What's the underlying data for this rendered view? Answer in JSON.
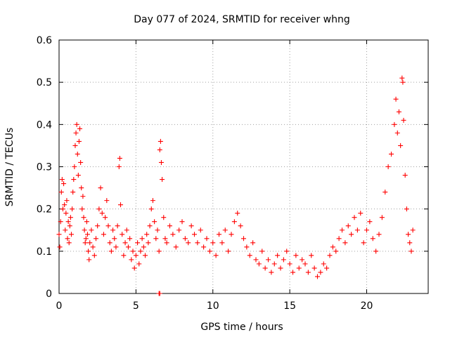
{
  "chart_data": {
    "type": "scatter",
    "title": "Day 077 of 2024, SRMTID for receiver whng",
    "xlabel": "GPS time / hours",
    "ylabel": "SRMTID / TECUs",
    "xlim": [
      0,
      24
    ],
    "ylim": [
      0,
      0.6
    ],
    "x_ticks": [
      0,
      5,
      10,
      15,
      20
    ],
    "y_ticks": [
      0,
      0.1,
      0.2,
      0.3,
      0.4,
      0.5,
      0.6
    ],
    "x_tick_labels": [
      "0",
      "5",
      "10",
      "15",
      "20"
    ],
    "y_tick_labels": [
      "0",
      "0.1",
      "0.2",
      "0.3",
      "0.4",
      "0.5",
      "0.6"
    ],
    "grid": true,
    "marker": "+",
    "series": [
      {
        "name": "SRMTID",
        "color": "#ff0000",
        "points": [
          [
            0.0,
            0.14
          ],
          [
            0.05,
            0.11
          ],
          [
            0.1,
            0.17
          ],
          [
            0.15,
            0.24
          ],
          [
            0.2,
            0.27
          ],
          [
            0.25,
            0.2
          ],
          [
            0.3,
            0.26
          ],
          [
            0.35,
            0.21
          ],
          [
            0.4,
            0.15
          ],
          [
            0.45,
            0.19
          ],
          [
            0.5,
            0.22
          ],
          [
            0.55,
            0.13
          ],
          [
            0.6,
            0.17
          ],
          [
            0.65,
            0.12
          ],
          [
            0.7,
            0.16
          ],
          [
            0.75,
            0.18
          ],
          [
            0.8,
            0.14
          ],
          [
            0.85,
            0.2
          ],
          [
            0.9,
            0.24
          ],
          [
            0.95,
            0.27
          ],
          [
            1.0,
            0.3
          ],
          [
            1.05,
            0.35
          ],
          [
            1.1,
            0.38
          ],
          [
            1.15,
            0.4
          ],
          [
            1.2,
            0.33
          ],
          [
            1.25,
            0.28
          ],
          [
            1.3,
            0.36
          ],
          [
            1.35,
            0.39
          ],
          [
            1.4,
            0.31
          ],
          [
            1.45,
            0.25
          ],
          [
            1.5,
            0.2
          ],
          [
            1.55,
            0.23
          ],
          [
            1.6,
            0.18
          ],
          [
            1.65,
            0.15
          ],
          [
            1.7,
            0.12
          ],
          [
            1.75,
            0.13
          ],
          [
            1.8,
            0.17
          ],
          [
            1.85,
            0.14
          ],
          [
            1.9,
            0.1
          ],
          [
            1.95,
            0.08
          ],
          [
            2.0,
            0.12
          ],
          [
            2.1,
            0.15
          ],
          [
            2.2,
            0.11
          ],
          [
            2.3,
            0.09
          ],
          [
            2.4,
            0.13
          ],
          [
            2.5,
            0.16
          ],
          [
            2.6,
            0.2
          ],
          [
            2.7,
            0.25
          ],
          [
            2.8,
            0.19
          ],
          [
            2.9,
            0.14
          ],
          [
            3.0,
            0.18
          ],
          [
            3.1,
            0.22
          ],
          [
            3.2,
            0.16
          ],
          [
            3.3,
            0.12
          ],
          [
            3.4,
            0.1
          ],
          [
            3.5,
            0.15
          ],
          [
            3.6,
            0.13
          ],
          [
            3.7,
            0.11
          ],
          [
            3.8,
            0.16
          ],
          [
            3.9,
            0.3
          ],
          [
            3.95,
            0.32
          ],
          [
            4.0,
            0.21
          ],
          [
            4.1,
            0.14
          ],
          [
            4.2,
            0.09
          ],
          [
            4.3,
            0.12
          ],
          [
            4.4,
            0.15
          ],
          [
            4.5,
            0.11
          ],
          [
            4.6,
            0.13
          ],
          [
            4.7,
            0.08
          ],
          [
            4.8,
            0.1
          ],
          [
            4.9,
            0.06
          ],
          [
            5.0,
            0.09
          ],
          [
            5.1,
            0.12
          ],
          [
            5.2,
            0.07
          ],
          [
            5.3,
            0.1
          ],
          [
            5.4,
            0.13
          ],
          [
            5.5,
            0.11
          ],
          [
            5.6,
            0.09
          ],
          [
            5.7,
            0.14
          ],
          [
            5.8,
            0.12
          ],
          [
            5.9,
            0.16
          ],
          [
            6.0,
            0.2
          ],
          [
            6.1,
            0.22
          ],
          [
            6.2,
            0.17
          ],
          [
            6.3,
            0.13
          ],
          [
            6.4,
            0.15
          ],
          [
            6.5,
            0.1
          ],
          [
            6.55,
            0.34
          ],
          [
            6.6,
            0.36
          ],
          [
            6.65,
            0.31
          ],
          [
            6.7,
            0.27
          ],
          [
            6.8,
            0.18
          ],
          [
            6.9,
            0.13
          ],
          [
            7.0,
            0.12
          ],
          [
            7.2,
            0.16
          ],
          [
            7.4,
            0.14
          ],
          [
            7.6,
            0.11
          ],
          [
            7.8,
            0.15
          ],
          [
            8.0,
            0.17
          ],
          [
            8.2,
            0.13
          ],
          [
            8.4,
            0.12
          ],
          [
            8.6,
            0.16
          ],
          [
            8.8,
            0.14
          ],
          [
            9.0,
            0.12
          ],
          [
            9.2,
            0.15
          ],
          [
            9.4,
            0.11
          ],
          [
            9.6,
            0.13
          ],
          [
            9.8,
            0.1
          ],
          [
            10.0,
            0.12
          ],
          [
            10.2,
            0.09
          ],
          [
            10.4,
            0.14
          ],
          [
            10.6,
            0.12
          ],
          [
            10.8,
            0.15
          ],
          [
            11.0,
            0.1
          ],
          [
            11.2,
            0.14
          ],
          [
            11.4,
            0.17
          ],
          [
            11.6,
            0.19
          ],
          [
            11.8,
            0.16
          ],
          [
            12.0,
            0.13
          ],
          [
            12.2,
            0.11
          ],
          [
            12.4,
            0.09
          ],
          [
            12.6,
            0.12
          ],
          [
            12.8,
            0.08
          ],
          [
            13.0,
            0.07
          ],
          [
            13.2,
            0.1
          ],
          [
            13.4,
            0.06
          ],
          [
            13.6,
            0.08
          ],
          [
            13.8,
            0.05
          ],
          [
            14.0,
            0.07
          ],
          [
            14.2,
            0.09
          ],
          [
            14.4,
            0.06
          ],
          [
            14.6,
            0.08
          ],
          [
            14.8,
            0.1
          ],
          [
            15.0,
            0.07
          ],
          [
            15.2,
            0.05
          ],
          [
            15.4,
            0.09
          ],
          [
            15.6,
            0.06
          ],
          [
            15.8,
            0.08
          ],
          [
            16.0,
            0.07
          ],
          [
            16.2,
            0.05
          ],
          [
            16.4,
            0.09
          ],
          [
            16.6,
            0.06
          ],
          [
            16.8,
            0.04
          ],
          [
            17.0,
            0.05
          ],
          [
            17.2,
            0.07
          ],
          [
            17.4,
            0.06
          ],
          [
            17.6,
            0.09
          ],
          [
            17.8,
            0.11
          ],
          [
            18.0,
            0.1
          ],
          [
            18.2,
            0.13
          ],
          [
            18.4,
            0.15
          ],
          [
            18.6,
            0.12
          ],
          [
            18.8,
            0.16
          ],
          [
            19.0,
            0.14
          ],
          [
            19.2,
            0.18
          ],
          [
            19.4,
            0.15
          ],
          [
            19.6,
            0.19
          ],
          [
            19.8,
            0.12
          ],
          [
            20.0,
            0.15
          ],
          [
            20.2,
            0.17
          ],
          [
            20.4,
            0.13
          ],
          [
            20.6,
            0.1
          ],
          [
            20.8,
            0.14
          ],
          [
            21.0,
            0.18
          ],
          [
            21.2,
            0.24
          ],
          [
            21.4,
            0.3
          ],
          [
            21.6,
            0.33
          ],
          [
            21.8,
            0.4
          ],
          [
            21.9,
            0.46
          ],
          [
            22.0,
            0.38
          ],
          [
            22.1,
            0.43
          ],
          [
            22.2,
            0.35
          ],
          [
            22.3,
            0.51
          ],
          [
            22.35,
            0.5
          ],
          [
            22.4,
            0.41
          ],
          [
            22.5,
            0.28
          ],
          [
            22.6,
            0.2
          ],
          [
            22.7,
            0.14
          ],
          [
            22.8,
            0.12
          ],
          [
            22.9,
            0.1
          ],
          [
            23.0,
            0.15
          ],
          [
            6.5,
            0.0
          ],
          [
            6.55,
            0.0
          ]
        ]
      }
    ]
  }
}
